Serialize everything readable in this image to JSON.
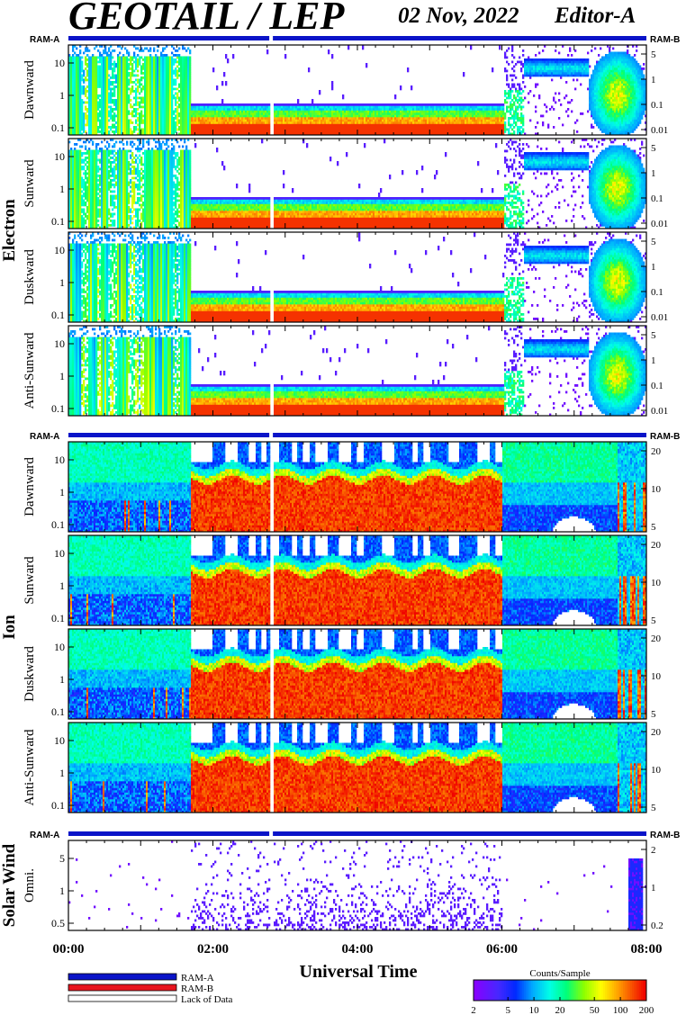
{
  "header": {
    "title": "GEOTAIL / LEP",
    "date": "02 Nov, 2022",
    "editor": "Editor-A"
  },
  "ram_labels": {
    "left": "RAM-A",
    "right": "RAM-B"
  },
  "groups": [
    {
      "name": "Electron",
      "panels": [
        "Dawnward",
        "Sunward",
        "Duskward",
        "Anti-Sunward"
      ]
    },
    {
      "name": "Ion",
      "panels": [
        "Dawnward",
        "Sunward",
        "Duskward",
        "Anti-Sunward"
      ]
    },
    {
      "name": "Solar Wind",
      "panels": [
        "Omni."
      ]
    }
  ],
  "colors": {
    "ram_a": "#0a14c8",
    "ram_b": "#e8141e",
    "lack_of_data": "#ffffff"
  },
  "chart_data": {
    "type": "heatmap",
    "xlabel": "Universal Time",
    "x_ticks": [
      "00:00",
      "02:00",
      "04:00",
      "06:00",
      "08:00"
    ],
    "x_range_hours": [
      0,
      8
    ],
    "panels": [
      {
        "group": "Electron",
        "name": "Dawnward",
        "yscale": "log",
        "left_ticks": [
          "0.1",
          "1",
          "10"
        ],
        "right_ticks": [
          "0.01",
          "0.1",
          "1",
          "5"
        ],
        "profile": "electron"
      },
      {
        "group": "Electron",
        "name": "Sunward",
        "yscale": "log",
        "left_ticks": [
          "0.1",
          "1",
          "10"
        ],
        "right_ticks": [
          "0.01",
          "0.1",
          "1",
          "5"
        ],
        "profile": "electron"
      },
      {
        "group": "Electron",
        "name": "Duskward",
        "yscale": "log",
        "left_ticks": [
          "0.1",
          "1",
          "10"
        ],
        "right_ticks": [
          "0.01",
          "0.1",
          "1",
          "5"
        ],
        "profile": "electron"
      },
      {
        "group": "Electron",
        "name": "Anti-Sunward",
        "yscale": "log",
        "left_ticks": [
          "0.1",
          "1",
          "10"
        ],
        "right_ticks": [
          "0.01",
          "0.1",
          "1",
          "5"
        ],
        "profile": "electron"
      },
      {
        "group": "Ion",
        "name": "Dawnward",
        "yscale": "log",
        "left_ticks": [
          "0.1",
          "1",
          "10"
        ],
        "right_ticks": [
          "5",
          "10",
          "20"
        ],
        "profile": "ion"
      },
      {
        "group": "Ion",
        "name": "Sunward",
        "yscale": "log",
        "left_ticks": [
          "0.1",
          "1",
          "10"
        ],
        "right_ticks": [
          "5",
          "10",
          "20"
        ],
        "profile": "ion"
      },
      {
        "group": "Ion",
        "name": "Duskward",
        "yscale": "log",
        "left_ticks": [
          "0.1",
          "1",
          "10"
        ],
        "right_ticks": [
          "5",
          "10",
          "20"
        ],
        "profile": "ion"
      },
      {
        "group": "Ion",
        "name": "Anti-Sunward",
        "yscale": "log",
        "left_ticks": [
          "0.1",
          "1",
          "10"
        ],
        "right_ticks": [
          "5",
          "10",
          "20"
        ],
        "profile": "ion"
      },
      {
        "group": "Solar Wind",
        "name": "Omni.",
        "yscale": "log",
        "left_ticks": [
          "0.5",
          "1",
          "5"
        ],
        "right_ticks": [
          "0.2",
          "1",
          "2"
        ],
        "profile": "solarwind"
      }
    ],
    "data_gap_hours": [
      2.78,
      2.83
    ],
    "colorbar": {
      "title": "Counts/Sample",
      "ticks": [
        "2",
        "5",
        "10",
        "20",
        "50",
        "100",
        "200"
      ],
      "scale": "log",
      "range": [
        2,
        200
      ]
    },
    "legend": [
      {
        "label": "RAM-A",
        "color": "#0a14c8"
      },
      {
        "label": "RAM-B",
        "color": "#e8141e"
      },
      {
        "label": "Lack of Data",
        "color": "#ffffff"
      }
    ]
  }
}
